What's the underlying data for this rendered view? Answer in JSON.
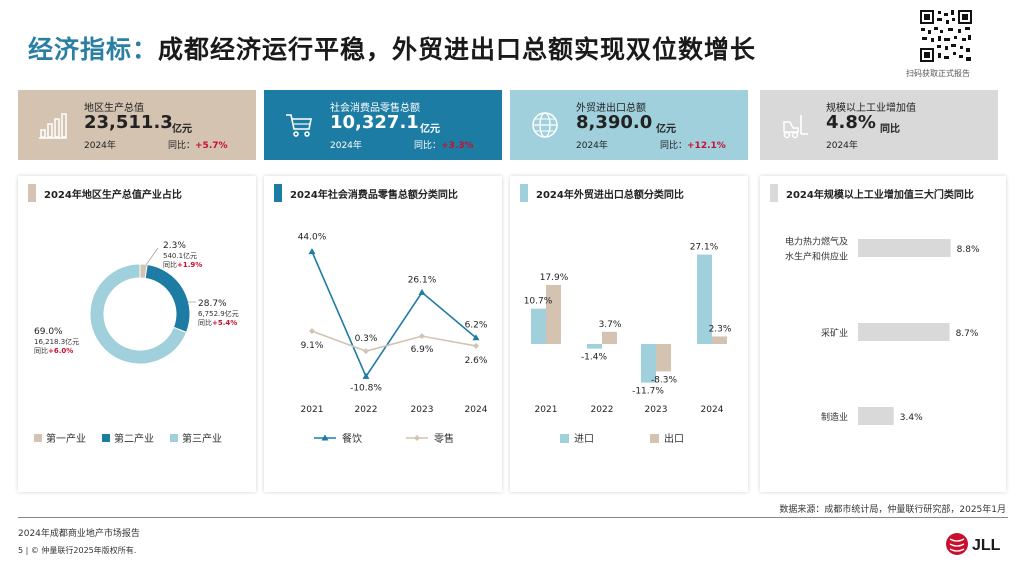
{
  "title": {
    "lead": "经济指标：",
    "rest": "成都经济运行平稳，外贸进出口总额实现双位数增长"
  },
  "qr": {
    "caption": "扫码获取正式报告"
  },
  "kpis": [
    {
      "label": "地区生产总值",
      "value": "23,511.3",
      "unit": "亿元",
      "year": "2024年",
      "yoy_label": "同比：",
      "yoy": "+5.7%",
      "icon": "bar-chart-icon",
      "bg": "#d4c3b1"
    },
    {
      "label": "社会消费品零售总额",
      "value": "10,327.1",
      "unit": "亿元",
      "year": "2024年",
      "yoy_label": "同比：",
      "yoy": "+3.3%",
      "icon": "cart-icon",
      "bg": "#1d7ca3"
    },
    {
      "label": "外贸进出口总额",
      "value": "8,390.0",
      "unit": "亿元",
      "year": "2024年",
      "yoy_label": "同比：",
      "yoy": "+12.1%",
      "icon": "globe-icon",
      "bg": "#9fd0dc"
    },
    {
      "label": "规模以上工业增加值",
      "value": "4.8%",
      "unit": "同比",
      "year": "2024年",
      "yoy_label": "",
      "yoy": "",
      "icon": "forklift-icon",
      "bg": "#d9d9d9"
    }
  ],
  "colors": {
    "primary": "#1d7ca3",
    "light": "#9fd0dc",
    "beige": "#d4c3b1",
    "grey": "#d9d9d9",
    "red": "#c8102e",
    "accent": "#2a7fa3"
  },
  "chart_data": [
    {
      "type": "pie",
      "title": "2024年地区生产总值产业占比",
      "categories": [
        "第一产业",
        "第二产业",
        "第三产业"
      ],
      "values": [
        2.3,
        28.7,
        69.0
      ],
      "amounts": [
        "540.1亿元",
        "6,752.9亿元",
        "16,218.3亿元"
      ],
      "yoy_label": "同比",
      "yoy": [
        "+1.9%",
        "+5.4%",
        "+6.0%"
      ],
      "colors": [
        "#d4c3b1",
        "#1d7ca3",
        "#9fd0dc"
      ],
      "legend": "bottom"
    },
    {
      "type": "line",
      "title": "2024年社会消费品零售总额分类同比",
      "x": [
        "2021",
        "2022",
        "2023",
        "2024"
      ],
      "series": [
        {
          "name": "餐饮",
          "values": [
            44.0,
            -10.8,
            26.1,
            6.2
          ],
          "labels": [
            "44.0%",
            "-10.8%",
            "26.1%",
            "6.2%"
          ],
          "color": "#1d7ca3"
        },
        {
          "name": "零售",
          "values": [
            9.1,
            0.3,
            6.9,
            2.6
          ],
          "labels": [
            "9.1%",
            "0.3%",
            "6.9%",
            "2.6%"
          ],
          "color": "#d4c3b1"
        }
      ],
      "ylim": [
        -15,
        50
      ],
      "legend": "bottom"
    },
    {
      "type": "bar",
      "title": "2024年外贸进出口总额分类同比",
      "categories": [
        "2021",
        "2022",
        "2023",
        "2024"
      ],
      "series": [
        {
          "name": "进口",
          "values": [
            10.7,
            -1.4,
            -11.7,
            27.1
          ],
          "labels": [
            "10.7%",
            "-1.4%",
            "-11.7%",
            "27.1%"
          ],
          "color": "#9fd0dc"
        },
        {
          "name": "出口",
          "values": [
            17.9,
            3.7,
            -8.3,
            2.3
          ],
          "labels": [
            "17.9%",
            "3.7%",
            "-8.3%",
            "2.3%"
          ],
          "color": "#d4c3b1"
        }
      ],
      "ylim": [
        -15,
        30
      ],
      "legend": "bottom"
    },
    {
      "type": "bar",
      "title": "2024年规模以上工业增加值三大门类同比",
      "orientation": "horizontal",
      "categories": [
        "电力热力燃气及水生产和供应业",
        "采矿业",
        "制造业"
      ],
      "category_lines": [
        [
          "电力热力燃气及",
          "水生产和供应业"
        ],
        [
          "采矿业"
        ],
        [
          "制造业"
        ]
      ],
      "values": [
        8.8,
        8.7,
        3.4
      ],
      "labels": [
        "8.8%",
        "8.7%",
        "3.4%"
      ],
      "color": "#d9d9d9",
      "xlim": [
        0,
        9.5
      ]
    }
  ],
  "footer": {
    "source": "数据来源：成都市统计局，仲量联行研究部，2025年1月",
    "report": "2024年成都商业地产市场报告",
    "copyright": "5 | © 仲量联行2025年版权所有.",
    "logo": "JLL"
  }
}
